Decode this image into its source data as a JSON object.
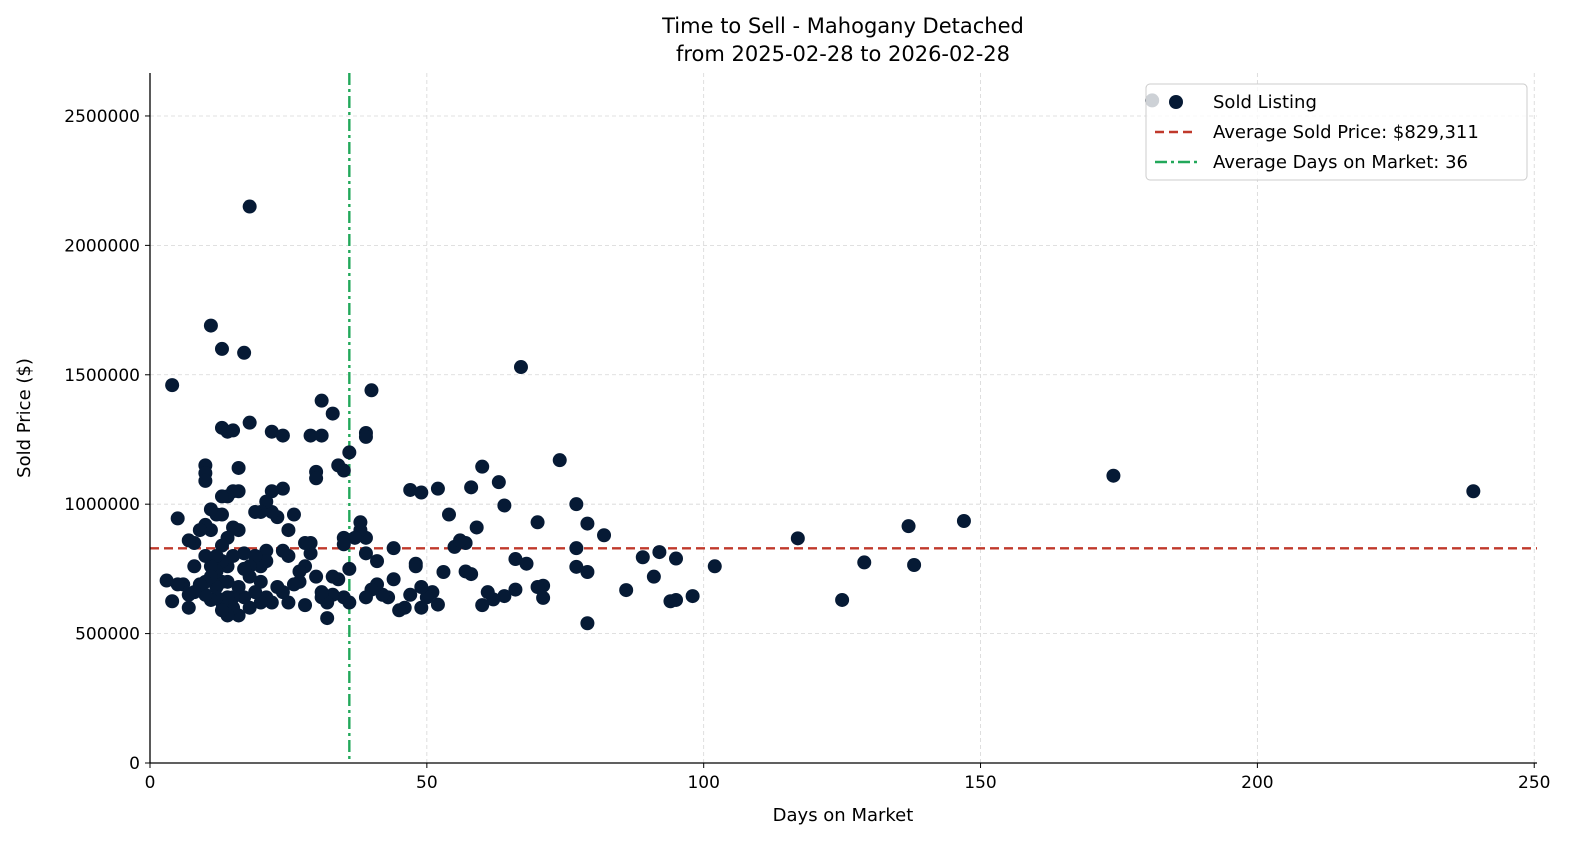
{
  "chart_data": {
    "type": "scatter",
    "title": "Time to Sell - Mahogany Detached",
    "subtitle": "from 2025-02-28 to 2026-02-28",
    "xlabel": "Days on Market",
    "ylabel": "Sold Price ($)",
    "xlim": [
      0,
      250.5
    ],
    "ylim": [
      0,
      2666000
    ],
    "xticks": [
      0,
      50,
      100,
      150,
      200,
      250
    ],
    "yticks": [
      0,
      500000,
      1000000,
      1500000,
      2000000,
      2500000
    ],
    "grid": true,
    "legend_position": "top-right",
    "colors": {
      "points": "#061a35",
      "avg_price": "#c0392b",
      "avg_days": "#22a85a"
    },
    "legend": [
      {
        "label": "Sold Listing",
        "kind": "point"
      },
      {
        "label": "Average Sold Price: $829,311",
        "kind": "dashed"
      },
      {
        "label": "Average Days on Market: 36",
        "kind": "dashdot"
      }
    ],
    "average_sold_price": 829311,
    "average_days_on_market": 36,
    "points": [
      [
        18,
        2150000
      ],
      [
        11,
        1690000
      ],
      [
        13,
        1600000
      ],
      [
        17,
        1585000
      ],
      [
        4,
        1460000
      ],
      [
        67,
        1530000
      ],
      [
        40,
        1440000
      ],
      [
        31,
        1400000
      ],
      [
        33,
        1350000
      ],
      [
        18,
        1315000
      ],
      [
        13,
        1295000
      ],
      [
        14,
        1280000
      ],
      [
        15,
        1285000
      ],
      [
        22,
        1280000
      ],
      [
        24,
        1265000
      ],
      [
        29,
        1265000
      ],
      [
        31,
        1265000
      ],
      [
        39,
        1275000
      ],
      [
        39,
        1260000
      ],
      [
        36,
        1200000
      ],
      [
        34,
        1150000
      ],
      [
        35,
        1130000
      ],
      [
        10,
        1150000
      ],
      [
        10,
        1120000
      ],
      [
        10,
        1090000
      ],
      [
        16,
        1140000
      ],
      [
        30,
        1125000
      ],
      [
        30,
        1100000
      ],
      [
        74,
        1170000
      ],
      [
        60,
        1145000
      ],
      [
        63,
        1085000
      ],
      [
        58,
        1065000
      ],
      [
        52,
        1060000
      ],
      [
        47,
        1055000
      ],
      [
        49,
        1045000
      ],
      [
        64,
        995000
      ],
      [
        77,
        1000000
      ],
      [
        70,
        930000
      ],
      [
        79,
        925000
      ],
      [
        82,
        880000
      ],
      [
        54,
        960000
      ],
      [
        59,
        910000
      ],
      [
        174,
        1110000
      ],
      [
        239,
        1050000
      ],
      [
        147,
        935000
      ],
      [
        137,
        915000
      ],
      [
        117,
        868000
      ],
      [
        89,
        795000
      ],
      [
        92,
        815000
      ],
      [
        95,
        790000
      ],
      [
        91,
        720000
      ],
      [
        86,
        668000
      ],
      [
        98,
        645000
      ],
      [
        102,
        760000
      ],
      [
        129,
        775000
      ],
      [
        138,
        765000
      ],
      [
        125,
        630000
      ],
      [
        94,
        625000
      ],
      [
        95,
        630000
      ],
      [
        79,
        540000
      ],
      [
        77,
        830000
      ],
      [
        77,
        758000
      ],
      [
        79,
        738000
      ],
      [
        66,
        788000
      ],
      [
        68,
        770000
      ],
      [
        71,
        685000
      ],
      [
        70,
        680000
      ],
      [
        71,
        638000
      ],
      [
        66,
        670000
      ],
      [
        64,
        645000
      ],
      [
        62,
        632000
      ],
      [
        61,
        660000
      ],
      [
        60,
        610000
      ],
      [
        57,
        740000
      ],
      [
        58,
        730000
      ],
      [
        57,
        850000
      ],
      [
        55,
        835000
      ],
      [
        56,
        860000
      ],
      [
        53,
        738000
      ],
      [
        52,
        612000
      ],
      [
        51,
        660000
      ],
      [
        50,
        640000
      ],
      [
        49,
        600000
      ],
      [
        49,
        680000
      ],
      [
        48,
        770000
      ],
      [
        48,
        760000
      ],
      [
        46,
        600000
      ],
      [
        45,
        590000
      ],
      [
        47,
        650000
      ],
      [
        44,
        710000
      ],
      [
        44,
        830000
      ],
      [
        43,
        640000
      ],
      [
        42,
        650000
      ],
      [
        41,
        780000
      ],
      [
        41,
        690000
      ],
      [
        40,
        670000
      ],
      [
        39,
        640000
      ],
      [
        39,
        810000
      ],
      [
        39,
        870000
      ],
      [
        38,
        930000
      ],
      [
        38,
        900000
      ],
      [
        37,
        870000
      ],
      [
        36,
        750000
      ],
      [
        36,
        620000
      ],
      [
        35,
        870000
      ],
      [
        35,
        845000
      ],
      [
        35,
        640000
      ],
      [
        34,
        710000
      ],
      [
        33,
        720000
      ],
      [
        33,
        650000
      ],
      [
        32,
        620000
      ],
      [
        32,
        560000
      ],
      [
        31,
        640000
      ],
      [
        31,
        660000
      ],
      [
        30,
        720000
      ],
      [
        29,
        850000
      ],
      [
        29,
        810000
      ],
      [
        28,
        850000
      ],
      [
        28,
        760000
      ],
      [
        28,
        610000
      ],
      [
        27,
        740000
      ],
      [
        27,
        700000
      ],
      [
        26,
        960000
      ],
      [
        26,
        690000
      ],
      [
        25,
        900000
      ],
      [
        25,
        800000
      ],
      [
        25,
        620000
      ],
      [
        24,
        1060000
      ],
      [
        24,
        820000
      ],
      [
        24,
        660000
      ],
      [
        23,
        950000
      ],
      [
        23,
        680000
      ],
      [
        22,
        970000
      ],
      [
        22,
        1050000
      ],
      [
        22,
        620000
      ],
      [
        21,
        1010000
      ],
      [
        21,
        820000
      ],
      [
        21,
        780000
      ],
      [
        21,
        640000
      ],
      [
        20,
        970000
      ],
      [
        20,
        760000
      ],
      [
        20,
        700000
      ],
      [
        20,
        620000
      ],
      [
        19,
        970000
      ],
      [
        19,
        800000
      ],
      [
        19,
        660000
      ],
      [
        18,
        760000
      ],
      [
        18,
        720000
      ],
      [
        18,
        600000
      ],
      [
        17,
        810000
      ],
      [
        17,
        750000
      ],
      [
        17,
        640000
      ],
      [
        16,
        1050000
      ],
      [
        16,
        900000
      ],
      [
        16,
        680000
      ],
      [
        16,
        570000
      ],
      [
        15,
        1050000
      ],
      [
        15,
        910000
      ],
      [
        15,
        800000
      ],
      [
        15,
        640000
      ],
      [
        15,
        600000
      ],
      [
        14,
        1030000
      ],
      [
        14,
        870000
      ],
      [
        14,
        760000
      ],
      [
        14,
        700000
      ],
      [
        14,
        640000
      ],
      [
        14,
        570000
      ],
      [
        13,
        1030000
      ],
      [
        13,
        960000
      ],
      [
        13,
        840000
      ],
      [
        13,
        780000
      ],
      [
        13,
        700000
      ],
      [
        13,
        620000
      ],
      [
        13,
        590000
      ],
      [
        12,
        960000
      ],
      [
        12,
        800000
      ],
      [
        12,
        740000
      ],
      [
        12,
        680000
      ],
      [
        12,
        640000
      ],
      [
        11,
        980000
      ],
      [
        11,
        900000
      ],
      [
        11,
        760000
      ],
      [
        11,
        720000
      ],
      [
        11,
        630000
      ],
      [
        10,
        920000
      ],
      [
        10,
        800000
      ],
      [
        10,
        700000
      ],
      [
        10,
        650000
      ],
      [
        9,
        900000
      ],
      [
        9,
        690000
      ],
      [
        8,
        850000
      ],
      [
        8,
        760000
      ],
      [
        8,
        660000
      ],
      [
        7,
        860000
      ],
      [
        7,
        650000
      ],
      [
        7,
        600000
      ],
      [
        6,
        690000
      ],
      [
        5,
        945000
      ],
      [
        5,
        690000
      ],
      [
        4,
        625000
      ],
      [
        3,
        705000
      ],
      [
        181,
        2560000
      ]
    ]
  }
}
